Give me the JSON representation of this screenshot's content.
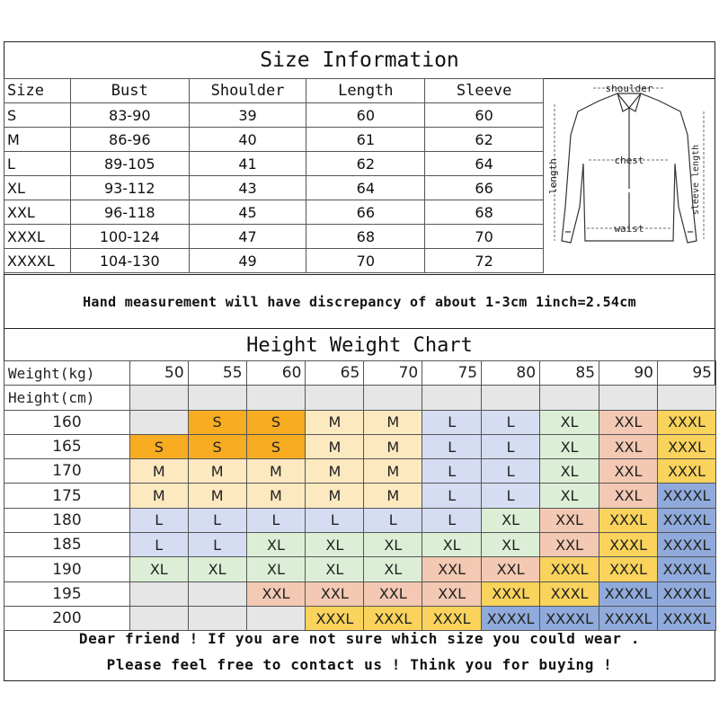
{
  "size_info": {
    "title": "Size Information",
    "headers": [
      "Size",
      "Bust",
      "Shoulder",
      "Length",
      "Sleeve"
    ],
    "rows": [
      [
        "S",
        "83-90",
        "39",
        "60",
        "60"
      ],
      [
        "M",
        "86-96",
        "40",
        "61",
        "62"
      ],
      [
        "L",
        "89-105",
        "41",
        "62",
        "64"
      ],
      [
        "XL",
        "93-112",
        "43",
        "64",
        "66"
      ],
      [
        "XXL",
        "96-118",
        "45",
        "66",
        "68"
      ],
      [
        "XXXL",
        "100-124",
        "47",
        "68",
        "70"
      ],
      [
        "XXXXL",
        "104-130",
        "49",
        "70",
        "72"
      ]
    ]
  },
  "diagram": {
    "shoulder_label": "shoulder",
    "chest_label": "chest",
    "length_label": "length",
    "sleeve_label": "sleeve length",
    "waist_label": "waist"
  },
  "note": "Hand measurement will have discrepancy of about 1-3cm  1inch=2.54cm",
  "height_weight": {
    "title": "Height Weight Chart",
    "weight_label": "Weight(kg)",
    "height_label": "Height(cm)",
    "weights": [
      "50",
      "55",
      "60",
      "65",
      "70",
      "75",
      "80",
      "85",
      "90",
      "95"
    ],
    "rows": [
      {
        "height": "160",
        "cells": [
          "",
          "S",
          "S",
          "M",
          "M",
          "L",
          "L",
          "XL",
          "XXL",
          "XXXL"
        ]
      },
      {
        "height": "165",
        "cells": [
          "S",
          "S",
          "S",
          "M",
          "M",
          "L",
          "L",
          "XL",
          "XXL",
          "XXXL"
        ]
      },
      {
        "height": "170",
        "cells": [
          "M",
          "M",
          "M",
          "M",
          "M",
          "L",
          "L",
          "XL",
          "XXL",
          "XXXL"
        ]
      },
      {
        "height": "175",
        "cells": [
          "M",
          "M",
          "M",
          "M",
          "M",
          "L",
          "L",
          "XL",
          "XXL",
          "XXXXL"
        ]
      },
      {
        "height": "180",
        "cells": [
          "L",
          "L",
          "L",
          "L",
          "L",
          "L",
          "XL",
          "XXL",
          "XXXL",
          "XXXXL"
        ]
      },
      {
        "height": "185",
        "cells": [
          "L",
          "L",
          "XL",
          "XL",
          "XL",
          "XL",
          "XL",
          "XXL",
          "XXXL",
          "XXXXL"
        ]
      },
      {
        "height": "190",
        "cells": [
          "XL",
          "XL",
          "XL",
          "XL",
          "XL",
          "XXL",
          "XXL",
          "XXXL",
          "XXXL",
          "XXXXL"
        ]
      },
      {
        "height": "195",
        "cells": [
          "",
          "",
          "XXL",
          "XXL",
          "XXL",
          "XXL",
          "XXXL",
          "XXXL",
          "XXXXL",
          "XXXXL"
        ]
      },
      {
        "height": "200",
        "cells": [
          "",
          "",
          "",
          "XXXL",
          "XXXL",
          "XXXL",
          "XXXXL",
          "XXXXL",
          "XXXXL",
          "XXXXL"
        ]
      }
    ],
    "colors": {
      "empty": "#e6e6e6",
      "S": "#f7ac21",
      "S_light": "#f9c659",
      "M": "#fde9c0",
      "L": "#d6ddf2",
      "XL": "#dcefd6",
      "XXL": "#f3c9b3",
      "XXXL": "#f9d35c",
      "XXXXL": "#8faadb"
    }
  },
  "footer": {
    "line1": "Dear friend ! If you are not sure which size you could wear .",
    "line2": "Please feel free to contact us ! Think you for buying !"
  }
}
